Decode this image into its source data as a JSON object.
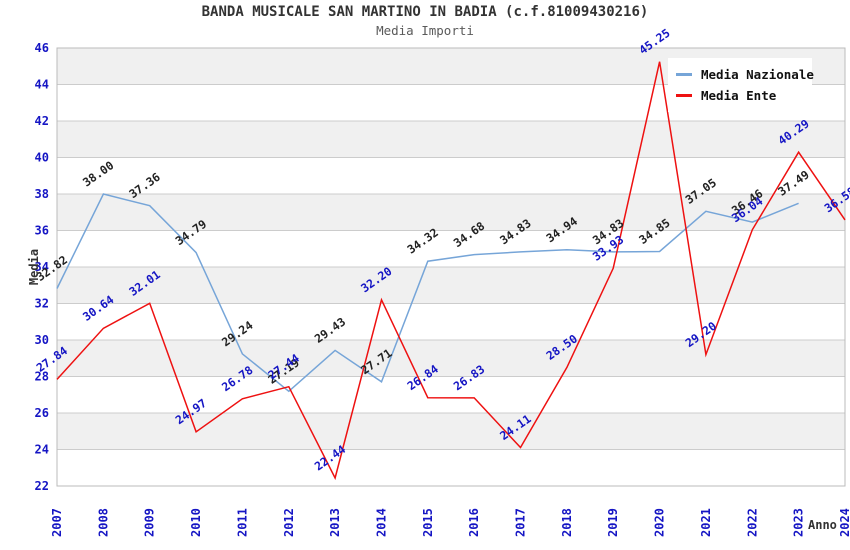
{
  "title": "BANDA MUSICALE SAN MARTINO IN BADIA (c.f.81009430216)",
  "subtitle": "Media Importi",
  "chart_data": {
    "type": "line",
    "x": [
      "2007",
      "2008",
      "2009",
      "2010",
      "2011",
      "2012",
      "2013",
      "2014",
      "2015",
      "2016",
      "2017",
      "2018",
      "2019",
      "2020",
      "2021",
      "2022",
      "2023",
      "2024"
    ],
    "xlabel": "Anno",
    "ylabel": "Media",
    "ylim": [
      22,
      46
    ],
    "ytick_step": 2,
    "grid": true,
    "legend_position": "top-right-inside",
    "series": [
      {
        "name": "Media Nazionale",
        "color": "#76a5d8",
        "label_color": "#222222",
        "values": [
          32.82,
          38.0,
          37.36,
          34.79,
          29.24,
          27.19,
          29.43,
          27.71,
          34.32,
          34.68,
          34.83,
          34.94,
          34.83,
          34.85,
          37.05,
          36.46,
          37.49,
          null
        ]
      },
      {
        "name": "Media Ente",
        "color": "#ee1111",
        "label_color": "#1515c4",
        "values": [
          27.84,
          30.64,
          32.01,
          24.97,
          26.78,
          27.44,
          22.44,
          32.2,
          26.84,
          26.83,
          24.11,
          28.5,
          33.93,
          45.25,
          29.2,
          36.04,
          40.29,
          36.58
        ]
      }
    ],
    "palette": {
      "axis_tick_text": "#1515c4",
      "gridline": "#cccccc",
      "plot_border": "#bbbbbb",
      "band_gray": "#f0f0f0",
      "band_white": "#ffffff"
    }
  }
}
